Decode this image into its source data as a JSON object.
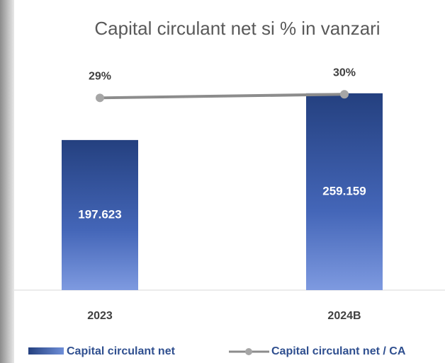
{
  "chart_data": {
    "type": "bar",
    "title": "Capital circulant net si % in vanzari",
    "categories": [
      "2023",
      "2024B"
    ],
    "ylim": [
      0,
      300000
    ],
    "y2lim": [
      -25,
      39
    ],
    "series": [
      {
        "name": "Capital circulant net",
        "type": "bar",
        "color": "#3a5aa8",
        "values": [
          197623,
          259159
        ],
        "value_labels": [
          "197.623",
          "259.159"
        ]
      },
      {
        "name": "Capital circulant net / CA",
        "type": "line",
        "axis": "y2",
        "color": "#a6a6a6",
        "values": [
          29,
          30
        ],
        "value_labels": [
          "29%",
          "30%"
        ]
      }
    ]
  }
}
